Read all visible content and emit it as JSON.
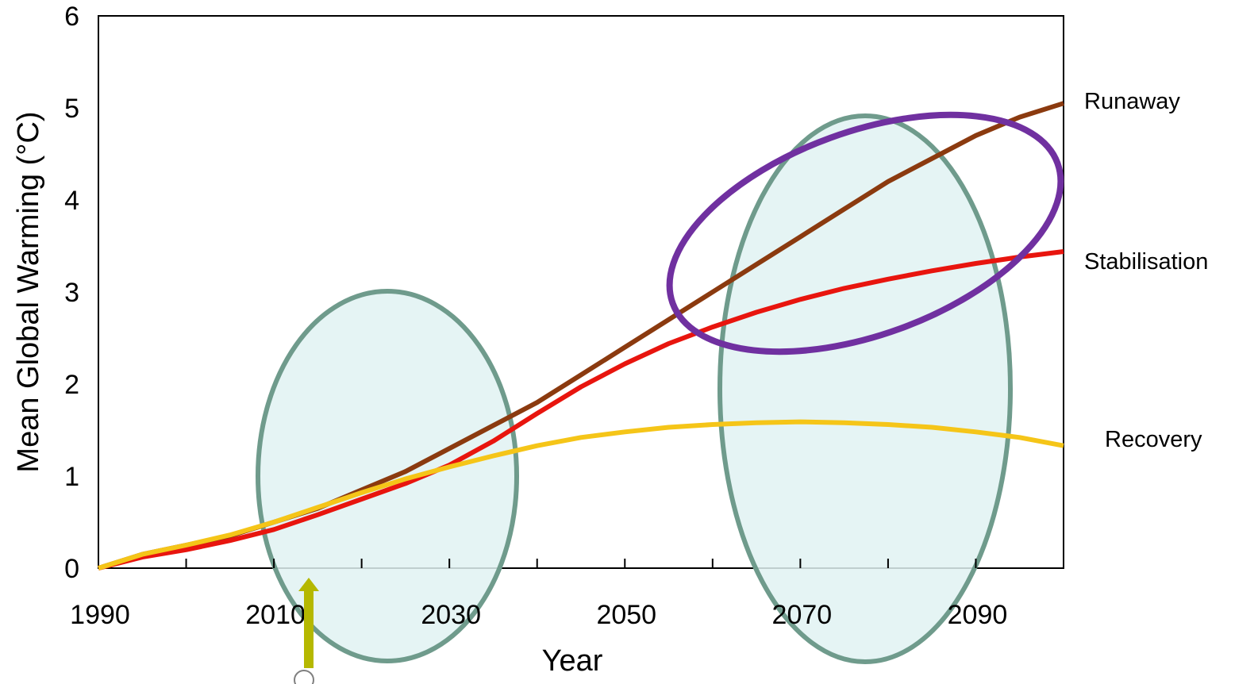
{
  "chart_data": {
    "type": "line",
    "title": "",
    "xlabel": "Year",
    "ylabel": "Mean Global Warming (°C)",
    "xlim": [
      1990,
      2100
    ],
    "ylim": [
      0,
      6
    ],
    "x_ticks": [
      1990,
      2010,
      2030,
      2050,
      2070,
      2090
    ],
    "y_ticks": [
      0,
      1,
      2,
      3,
      4,
      5,
      6
    ],
    "grid": false,
    "x": [
      1990,
      1995,
      2000,
      2005,
      2010,
      2015,
      2020,
      2025,
      2030,
      2035,
      2040,
      2045,
      2050,
      2055,
      2060,
      2065,
      2070,
      2075,
      2080,
      2085,
      2090,
      2095,
      2100
    ],
    "series": [
      {
        "name": "Runaway",
        "color": "#8b3a0f",
        "values": [
          0,
          0.15,
          0.25,
          0.35,
          0.5,
          0.65,
          0.85,
          1.05,
          1.3,
          1.55,
          1.8,
          2.1,
          2.4,
          2.7,
          3.0,
          3.3,
          3.6,
          3.9,
          4.2,
          4.45,
          4.7,
          4.9,
          5.05
        ]
      },
      {
        "name": "Stabilisation",
        "color": "#e8150e",
        "values": [
          0,
          0.12,
          0.2,
          0.3,
          0.42,
          0.58,
          0.75,
          0.92,
          1.12,
          1.38,
          1.68,
          1.97,
          2.22,
          2.44,
          2.62,
          2.78,
          2.92,
          3.04,
          3.14,
          3.23,
          3.31,
          3.38,
          3.44
        ]
      },
      {
        "name": "Recovery",
        "color": "#f5c518",
        "values": [
          0,
          0.15,
          0.25,
          0.36,
          0.5,
          0.66,
          0.82,
          0.97,
          1.1,
          1.22,
          1.33,
          1.42,
          1.48,
          1.53,
          1.56,
          1.58,
          1.59,
          1.58,
          1.56,
          1.53,
          1.48,
          1.42,
          1.33
        ]
      }
    ],
    "annotations": {
      "highlight_ellipse_color": "#6f9b8c",
      "highlight_fill": "#e0f2f2",
      "focus_ellipse_color": "#7030a0",
      "arrow_color": "#b5b800"
    }
  }
}
